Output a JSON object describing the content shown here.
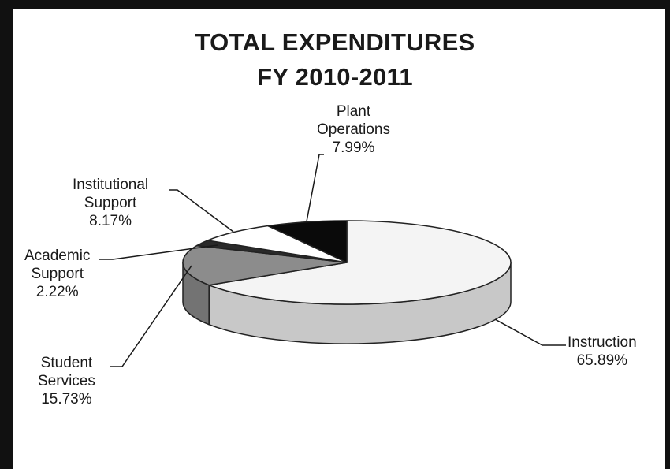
{
  "chart_data": {
    "type": "pie",
    "title_lines": [
      "TOTAL EXPENDITURES",
      "FY 2010-2011"
    ],
    "slices": [
      {
        "label_lines": [
          "Instruction"
        ],
        "value": 65.89,
        "value_text": "65.89%",
        "color": "#f4f4f4"
      },
      {
        "label_lines": [
          "Student",
          "Services"
        ],
        "value": 15.73,
        "value_text": "15.73%",
        "color": "#8c8c8c"
      },
      {
        "label_lines": [
          "Academic",
          "Support"
        ],
        "value": 2.22,
        "value_text": "2.22%",
        "color": "#2a2a2a"
      },
      {
        "label_lines": [
          "Institutional",
          "Support"
        ],
        "value": 8.17,
        "value_text": "8.17%",
        "color": "#ffffff"
      },
      {
        "label_lines": [
          "Plant",
          "Operations"
        ],
        "value": 7.99,
        "value_text": "7.99%",
        "color": "#0a0a0a"
      }
    ]
  }
}
